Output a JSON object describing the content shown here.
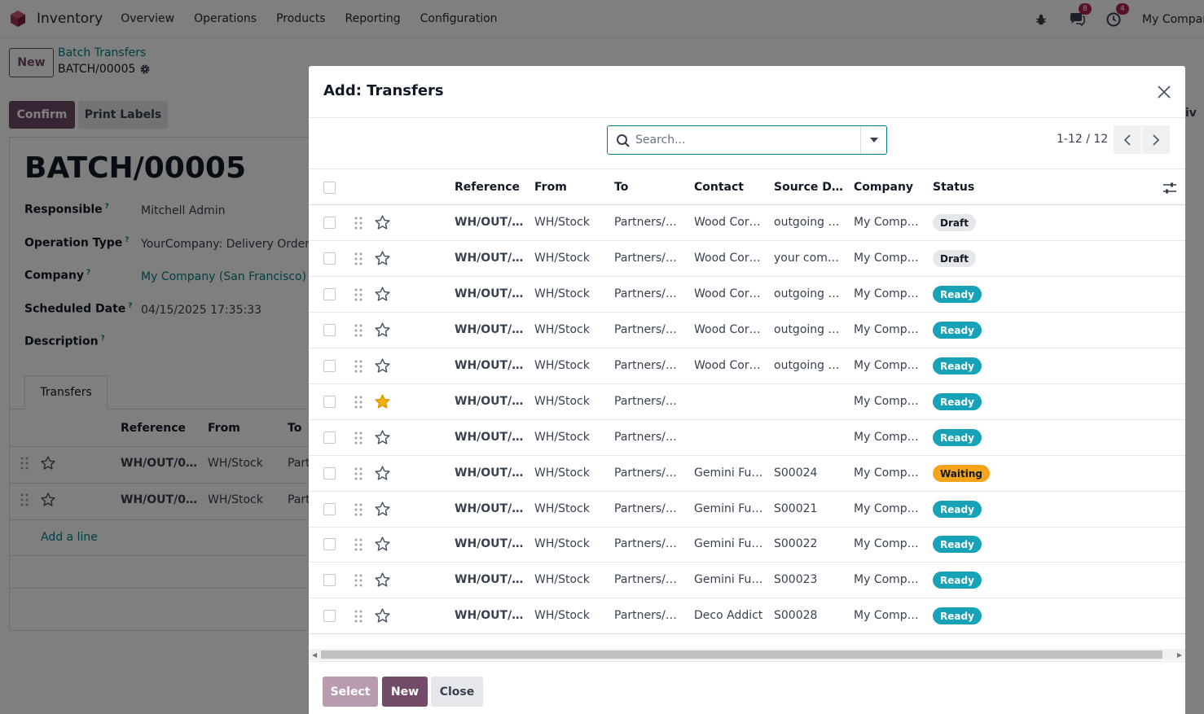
{
  "navbar": {
    "app_name": "Inventory",
    "menu": [
      "Overview",
      "Operations",
      "Products",
      "Reporting",
      "Configuration"
    ],
    "messages_count": "8",
    "activities_count": "4",
    "company": "My Company"
  },
  "control_panel": {
    "new_label": "New",
    "breadcrumb_parent": "Batch Transfers",
    "breadcrumb_current": "BATCH/00005",
    "confirm_label": "Confirm",
    "print_labels_label": "Print Labels",
    "stat_fragment": "ctiv"
  },
  "form": {
    "title": "BATCH/00005",
    "fields": [
      {
        "label": "Responsible",
        "value": "Mitchell Admin",
        "link": false
      },
      {
        "label": "Operation Type",
        "value": "YourCompany: Delivery Orders",
        "link": false
      },
      {
        "label": "Company",
        "value": "My Company (San Francisco)",
        "link": true
      },
      {
        "label": "Scheduled Date",
        "value": "04/15/2025 17:35:33",
        "link": false
      },
      {
        "label": "Description",
        "value": "",
        "link": false
      }
    ],
    "help_marker": "?",
    "tab_label": "Transfers",
    "columns": [
      "Reference",
      "From",
      "To"
    ],
    "rows": [
      {
        "reference": "WH/OUT/0…",
        "from": "WH/Stock",
        "to": "Part"
      },
      {
        "reference": "WH/OUT/0…",
        "from": "WH/Stock",
        "to": "Part"
      }
    ],
    "add_line_label": "Add a line"
  },
  "modal": {
    "title": "Add: Transfers",
    "search_placeholder": "Search...",
    "pager": "1-12 / 12",
    "columns": [
      "Reference",
      "From",
      "To",
      "Contact",
      "Source D…",
      "Company",
      "Status"
    ],
    "rows": [
      {
        "reference": "WH/OUT/…",
        "from": "WH/Stock",
        "to": "Partners/…",
        "contact": "Wood Cor…",
        "source": "outgoing …",
        "company": "My Comp…",
        "status": "Draft",
        "status_kind": "draft",
        "starred": false
      },
      {
        "reference": "WH/OUT/…",
        "from": "WH/Stock",
        "to": "Partners/…",
        "contact": "Wood Cor…",
        "source": "your com…",
        "company": "My Comp…",
        "status": "Draft",
        "status_kind": "draft",
        "starred": false
      },
      {
        "reference": "WH/OUT/…",
        "from": "WH/Stock",
        "to": "Partners/…",
        "contact": "Wood Cor…",
        "source": "outgoing …",
        "company": "My Comp…",
        "status": "Ready",
        "status_kind": "ready",
        "starred": false
      },
      {
        "reference": "WH/OUT/…",
        "from": "WH/Stock",
        "to": "Partners/…",
        "contact": "Wood Cor…",
        "source": "outgoing …",
        "company": "My Comp…",
        "status": "Ready",
        "status_kind": "ready",
        "starred": false
      },
      {
        "reference": "WH/OUT/…",
        "from": "WH/Stock",
        "to": "Partners/…",
        "contact": "Wood Cor…",
        "source": "outgoing …",
        "company": "My Comp…",
        "status": "Ready",
        "status_kind": "ready",
        "starred": false
      },
      {
        "reference": "WH/OUT/…",
        "from": "WH/Stock",
        "to": "Partners/…",
        "contact": "",
        "source": "",
        "company": "My Comp…",
        "status": "Ready",
        "status_kind": "ready",
        "starred": true
      },
      {
        "reference": "WH/OUT/…",
        "from": "WH/Stock",
        "to": "Partners/…",
        "contact": "",
        "source": "",
        "company": "My Comp…",
        "status": "Ready",
        "status_kind": "ready",
        "starred": false
      },
      {
        "reference": "WH/OUT/…",
        "from": "WH/Stock",
        "to": "Partners/…",
        "contact": "Gemini Fu…",
        "source": "S00024",
        "company": "My Comp…",
        "status": "Waiting",
        "status_kind": "waiting",
        "starred": false
      },
      {
        "reference": "WH/OUT/…",
        "from": "WH/Stock",
        "to": "Partners/…",
        "contact": "Gemini Fu…",
        "source": "S00021",
        "company": "My Comp…",
        "status": "Ready",
        "status_kind": "ready",
        "starred": false
      },
      {
        "reference": "WH/OUT/…",
        "from": "WH/Stock",
        "to": "Partners/…",
        "contact": "Gemini Fu…",
        "source": "S00022",
        "company": "My Comp…",
        "status": "Ready",
        "status_kind": "ready",
        "starred": false
      },
      {
        "reference": "WH/OUT/…",
        "from": "WH/Stock",
        "to": "Partners/…",
        "contact": "Gemini Fu…",
        "source": "S00023",
        "company": "My Comp…",
        "status": "Ready",
        "status_kind": "ready",
        "starred": false
      },
      {
        "reference": "WH/OUT/…",
        "from": "WH/Stock",
        "to": "Partners/…",
        "contact": "Deco Addict",
        "source": "S00028",
        "company": "My Comp…",
        "status": "Ready",
        "status_kind": "ready",
        "starred": false
      }
    ],
    "footer": {
      "select_label": "Select",
      "new_label": "New",
      "close_label": "Close"
    }
  },
  "colors": {
    "brand": "#714b67",
    "link": "#017e84",
    "ready": "#17a2b8",
    "waiting": "#f3a41a",
    "draft": "#e5e7eb",
    "star_active": "#f3b10a"
  }
}
